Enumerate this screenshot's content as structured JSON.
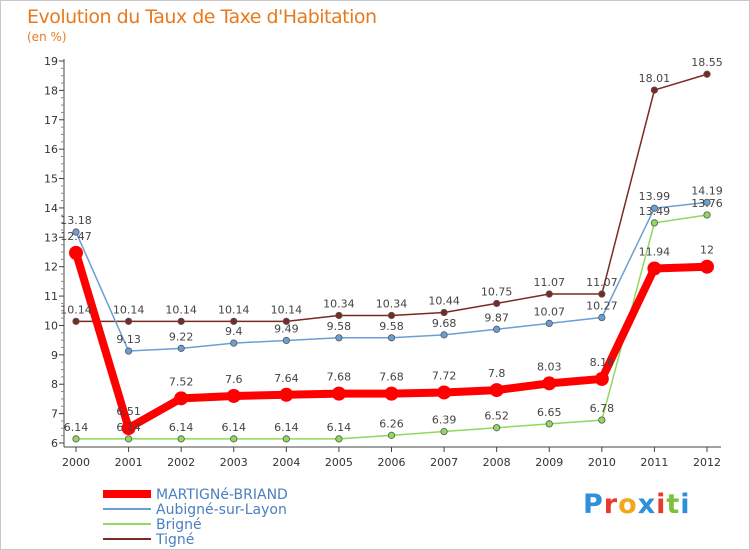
{
  "header": {
    "title": "Evolution du Taux de Taxe d'Habitation",
    "subtitle": "(en %)"
  },
  "logo": {
    "text": "Proxiti",
    "letter_colors": [
      "#2f8fd8",
      "#e83a2a",
      "#f2a81c",
      "#2f8fd8",
      "#e83a2a",
      "#7cc040",
      "#2f8fd8"
    ]
  },
  "chart_data": {
    "type": "line",
    "title": "Evolution du Taux de Taxe d'Habitation",
    "subtitle": "(en %)",
    "x": [
      "2000",
      "2001",
      "2002",
      "2003",
      "2004",
      "2005",
      "2006",
      "2007",
      "2008",
      "2009",
      "2010",
      "2011",
      "2012"
    ],
    "y_ticks": [
      "6",
      "7",
      "8",
      "9",
      "10",
      "11",
      "12",
      "13",
      "14",
      "15",
      "16",
      "17",
      "18",
      "19"
    ],
    "ylim": [
      6,
      19
    ],
    "grid": false,
    "legend_position": "bottom-left",
    "series": [
      {
        "name": "MARTIGNé-BRIAND",
        "color": "#ff0000",
        "emphasis": true,
        "values": [
          12.47,
          6.51,
          7.52,
          7.6,
          7.64,
          7.68,
          7.68,
          7.72,
          7.8,
          8.03,
          8.18,
          11.94,
          12
        ],
        "labels": [
          "12.47",
          "6.51",
          "7.52",
          "7.6",
          "7.64",
          "7.68",
          "7.68",
          "7.72",
          "7.8",
          "8.03",
          "8.18",
          "11.94",
          "12"
        ]
      },
      {
        "name": "Aubigné-sur-Layon",
        "color": "#6a9fd4",
        "values": [
          13.18,
          9.13,
          9.22,
          9.4,
          9.49,
          9.58,
          9.58,
          9.68,
          9.87,
          10.07,
          10.27,
          13.99,
          14.19
        ],
        "labels": [
          "13.18",
          "9.13",
          "9.22",
          "9.4",
          "9.49",
          "9.58",
          "9.58",
          "9.68",
          "9.87",
          "10.07",
          "10.27",
          "13.99",
          "14.19"
        ]
      },
      {
        "name": "Brigné",
        "color": "#90d860",
        "values": [
          6.14,
          6.14,
          6.14,
          6.14,
          6.14,
          6.14,
          6.26,
          6.39,
          6.52,
          6.65,
          6.78,
          13.49,
          13.76
        ],
        "labels": [
          "6.14",
          "6.14",
          "6.14",
          "6.14",
          "6.14",
          "6.14",
          "6.26",
          "6.39",
          "6.52",
          "6.65",
          "6.78",
          "13.49",
          "13.76"
        ]
      },
      {
        "name": "Tigné",
        "color": "#7a2a22",
        "values": [
          10.14,
          10.14,
          10.14,
          10.14,
          10.14,
          10.34,
          10.34,
          10.44,
          10.75,
          11.07,
          11.07,
          18.01,
          18.55
        ],
        "labels": [
          "10.14",
          "10.14",
          "10.14",
          "10.14",
          "10.14",
          "10.34",
          "10.34",
          "10.44",
          "10.75",
          "11.07",
          "11.07",
          "18.01",
          "18.55"
        ]
      }
    ]
  }
}
